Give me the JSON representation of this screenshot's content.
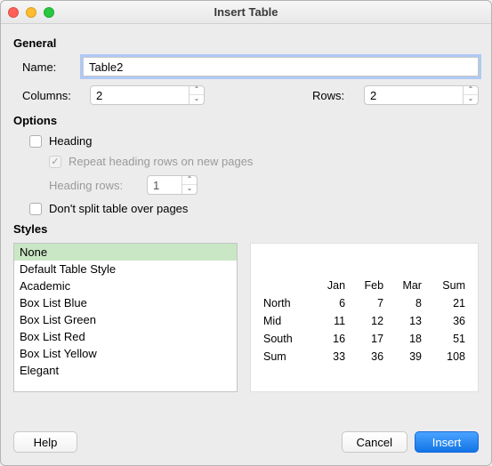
{
  "window": {
    "title": "Insert Table"
  },
  "general": {
    "section_label": "General",
    "name_label": "Name:",
    "name_value": "Table2",
    "columns_label": "Columns:",
    "columns_value": "2",
    "rows_label": "Rows:",
    "rows_value": "2"
  },
  "options": {
    "section_label": "Options",
    "heading_label": "Heading",
    "heading_checked": false,
    "repeat_label": "Repeat heading rows on new pages",
    "repeat_checked": true,
    "repeat_enabled": false,
    "heading_rows_label": "Heading rows:",
    "heading_rows_value": "1",
    "heading_rows_enabled": false,
    "dont_split_label": "Don't split table over pages",
    "dont_split_checked": false
  },
  "styles": {
    "section_label": "Styles",
    "items": [
      "None",
      "Default Table Style",
      "Academic",
      "Box List Blue",
      "Box List Green",
      "Box List Red",
      "Box List Yellow",
      "Elegant"
    ],
    "selected_index": 0,
    "selected_bg": "#c9e7c4",
    "preview": {
      "col_headers": [
        "",
        "Jan",
        "Feb",
        "Mar",
        "Sum"
      ],
      "rows": [
        [
          "North",
          "6",
          "7",
          "8",
          "21"
        ],
        [
          "Mid",
          "11",
          "12",
          "13",
          "36"
        ],
        [
          "South",
          "16",
          "17",
          "18",
          "51"
        ],
        [
          "Sum",
          "33",
          "36",
          "39",
          "108"
        ]
      ]
    }
  },
  "buttons": {
    "help": "Help",
    "cancel": "Cancel",
    "insert": "Insert"
  },
  "colors": {
    "primary": "#1274e6",
    "focus_ring": "#8ab4f8"
  }
}
